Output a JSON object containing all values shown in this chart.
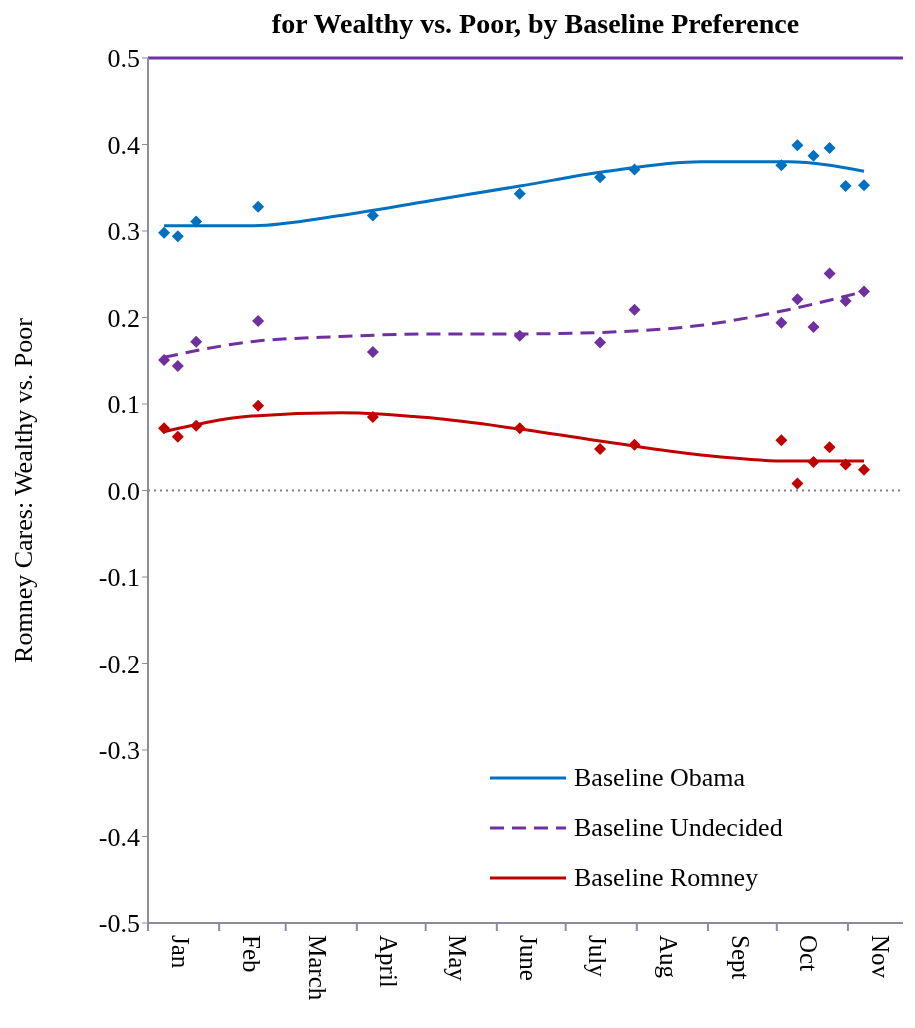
{
  "chart_data": {
    "type": "scatter",
    "title": "for Wealthy vs. Poor, by Baseline Preference",
    "ylabel": "Romney Cares: Wealthy vs. Poor",
    "xlim": [
      "--01-01",
      "--11-25"
    ],
    "xticks": [
      {
        "value": "--01-01",
        "label": null
      },
      {
        "value": "--01-15",
        "label": "Jan"
      },
      {
        "value": "--02-01",
        "label": null
      },
      {
        "value": "--02-15",
        "label": "Feb"
      },
      {
        "value": "--03-01",
        "label": null
      },
      {
        "value": "--03-15",
        "label": "March"
      },
      {
        "value": "--04-01",
        "label": null
      },
      {
        "value": "--04-15",
        "label": "April"
      },
      {
        "value": "--05-01",
        "label": null
      },
      {
        "value": "--05-15",
        "label": "May"
      },
      {
        "value": "--06-01",
        "label": null
      },
      {
        "value": "--06-15",
        "label": "June"
      },
      {
        "value": "--07-01",
        "label": null
      },
      {
        "value": "--07-15",
        "label": "July"
      },
      {
        "value": "--08-01",
        "label": null
      },
      {
        "value": "--08-15",
        "label": "Aug"
      },
      {
        "value": "--09-01",
        "label": null
      },
      {
        "value": "--09-15",
        "label": "Sept"
      },
      {
        "value": "--10-01",
        "label": null
      },
      {
        "value": "--10-15",
        "label": "Oct"
      },
      {
        "value": "--11-01",
        "label": null
      },
      {
        "value": "--11-15",
        "label": "Nov"
      }
    ],
    "ylim": [
      -0.5,
      0.5
    ],
    "yticks": [
      -0.5,
      -0.4,
      -0.3,
      -0.2,
      -0.1,
      {
        "value": 0,
        "label": "0.0"
      },
      0.1,
      0.2,
      0.3,
      0.4,
      0.5
    ],
    "legend": "bottom right",
    "ref_lines": [
      {
        "axis": "y",
        "value": 0,
        "label": null,
        "color": "#808080",
        "line_style": "dotted"
      }
    ],
    "series": [
      {
        "marker": "diamond",
        "color": "#0070c0",
        "x": [
          "--01-08",
          "--01-14",
          "--01-22",
          "--02-18",
          "--04-08",
          "--06-11",
          "--07-16",
          "--07-31",
          "--10-03",
          "--10-10",
          "--10-17",
          "--10-24",
          "--10-31",
          "--11-08"
        ],
        "values": [
          0.298,
          0.294,
          0.311,
          0.328,
          0.318,
          0.343,
          0.362,
          0.371,
          0.376,
          0.399,
          0.387,
          0.396,
          0.352,
          0.353
        ]
      },
      {
        "marker": "diamond",
        "color": "#7030a0",
        "x": [
          "--01-08",
          "--01-14",
          "--01-22",
          "--02-18",
          "--04-08",
          "--06-11",
          "--07-16",
          "--07-31",
          "--10-03",
          "--10-10",
          "--10-17",
          "--10-24",
          "--10-31",
          "--11-08"
        ],
        "values": [
          0.151,
          0.144,
          0.172,
          0.196,
          0.16,
          0.179,
          0.171,
          0.209,
          0.194,
          0.221,
          0.189,
          0.251,
          0.219,
          0.23
        ]
      },
      {
        "marker": "diamond",
        "color": "#c00000",
        "x": [
          "--01-08",
          "--01-14",
          "--01-22",
          "--02-18",
          "--04-08",
          "--06-11",
          "--07-16",
          "--07-31",
          "--10-03",
          "--10-10",
          "--10-17",
          "--10-24",
          "--10-31",
          "--11-08"
        ],
        "values": [
          0.072,
          0.062,
          0.075,
          0.098,
          0.085,
          0.072,
          0.048,
          0.053,
          0.058,
          0.008,
          0.033,
          0.05,
          0.03,
          0.024
        ]
      },
      {
        "type": "line",
        "name": "Baseline Obama",
        "color": "#0070c0",
        "line_style": "solid",
        "x": [
          "--01-08",
          "--02-15",
          "--03-25",
          "--05-03",
          "--06-11",
          "--07-19",
          "--08-29",
          "--10-06",
          "--11-08"
        ],
        "values": [
          0.306,
          0.306,
          0.318,
          0.335,
          0.352,
          0.369,
          0.38,
          0.38,
          0.369
        ]
      },
      {
        "type": "line",
        "name": "Baseline Undecided",
        "color": "#7030a0",
        "line_style": "dashed",
        "x": [
          "--01-08",
          "--02-15",
          "--03-25",
          "--05-03",
          "--06-11",
          "--07-19",
          "--08-29",
          "--10-06",
          "--11-08"
        ],
        "values": [
          0.154,
          0.172,
          0.178,
          0.181,
          0.181,
          0.183,
          0.191,
          0.209,
          0.23
        ]
      },
      {
        "type": "line",
        "name": "Baseline Romney",
        "color": "#c00000",
        "line_style": "solid",
        "x": [
          "--01-08",
          "--02-15",
          "--03-25",
          "--05-03",
          "--06-11",
          "--07-19",
          "--08-29",
          "--10-06",
          "--11-08"
        ],
        "values": [
          0.068,
          0.086,
          0.09,
          0.084,
          0.071,
          0.056,
          0.041,
          0.034,
          0.034
        ]
      }
    ]
  }
}
